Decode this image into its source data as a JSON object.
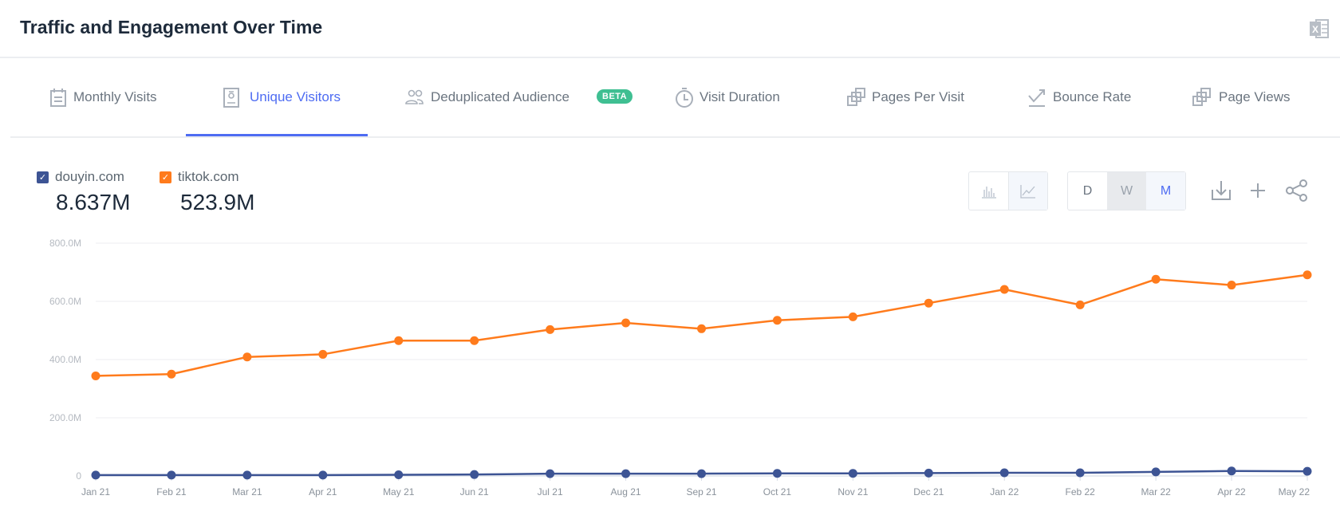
{
  "header": {
    "title": "Traffic and Engagement Over Time",
    "export_icon": "excel-icon"
  },
  "tabs": [
    {
      "label": "Monthly Visits",
      "icon": "calendar-icon"
    },
    {
      "label": "Unique Visitors",
      "icon": "id-badge-icon",
      "active": true
    },
    {
      "label": "Deduplicated Audience",
      "icon": "users-icon",
      "badge": "BETA"
    },
    {
      "label": "Visit Duration",
      "icon": "stopwatch-icon"
    },
    {
      "label": "Pages Per Visit",
      "icon": "pages-icon"
    },
    {
      "label": "Bounce Rate",
      "icon": "bounce-icon"
    },
    {
      "label": "Page Views",
      "icon": "pages-icon"
    }
  ],
  "legend": [
    {
      "name": "douyin.com",
      "value": "8.637M",
      "color": "#3d5494",
      "checked": true
    },
    {
      "name": "tiktok.com",
      "value": "523.9M",
      "color": "#ff7b1c",
      "checked": true
    }
  ],
  "controls": {
    "chart_types": [
      "bar-chart-icon",
      "line-chart-icon"
    ],
    "granularity": [
      "D",
      "W",
      "M"
    ],
    "selected_granularity": "M",
    "actions": [
      "download-icon",
      "add-icon",
      "share-icon"
    ]
  },
  "colors": {
    "accent": "#4e6cf2",
    "beta": "#3fbf92"
  },
  "chart_data": {
    "type": "line",
    "categories": [
      "Jan 21",
      "Feb 21",
      "Mar 21",
      "Apr 21",
      "May 21",
      "Jun 21",
      "Jul 21",
      "Aug 21",
      "Sep 21",
      "Oct 21",
      "Nov 21",
      "Dec 21",
      "Jan 22",
      "Feb 22",
      "Mar 22",
      "Apr 22",
      "May 22"
    ],
    "y_ticks": [
      "0",
      "200.0M",
      "400.0M",
      "600.0M",
      "800.0M"
    ],
    "ylim": [
      0,
      800
    ],
    "y_unit": "M",
    "grid": true,
    "series": [
      {
        "name": "douyin.com",
        "color": "#3d5494",
        "values": [
          3,
          3,
          3,
          3,
          4,
          5,
          8,
          8,
          8,
          9,
          9,
          10,
          11,
          11,
          14,
          17,
          16
        ]
      },
      {
        "name": "tiktok.com",
        "color": "#ff7b1c",
        "values": [
          344,
          350,
          409,
          418,
          465,
          465,
          503,
          526,
          506,
          535,
          547,
          594,
          641,
          588,
          676,
          656,
          691
        ]
      }
    ]
  }
}
